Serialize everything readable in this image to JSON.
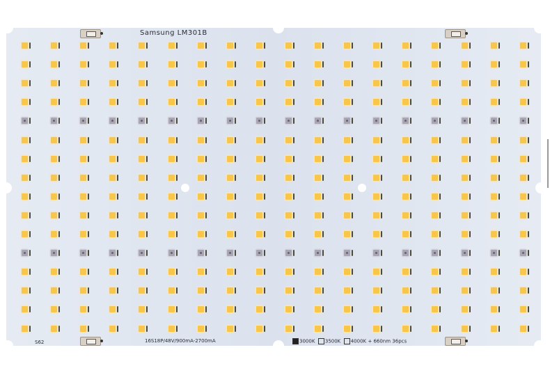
{
  "board": {
    "title": "Samsung  LM301B",
    "spec": "16S18P/48V/900mA-2700mA",
    "serial": "S62",
    "options": [
      {
        "label": "3000K",
        "checked": true
      },
      {
        "label": "3500K",
        "checked": false
      },
      {
        "label": "4000K + 660nm 36pcs",
        "checked": false
      }
    ],
    "colors": {
      "pcb": "#dde4ef",
      "led_white": "#f7c64a",
      "led_red": "#a7a6b2"
    },
    "grid": {
      "columns": 18,
      "rows": 16,
      "red_rows": [
        5,
        12
      ]
    }
  }
}
